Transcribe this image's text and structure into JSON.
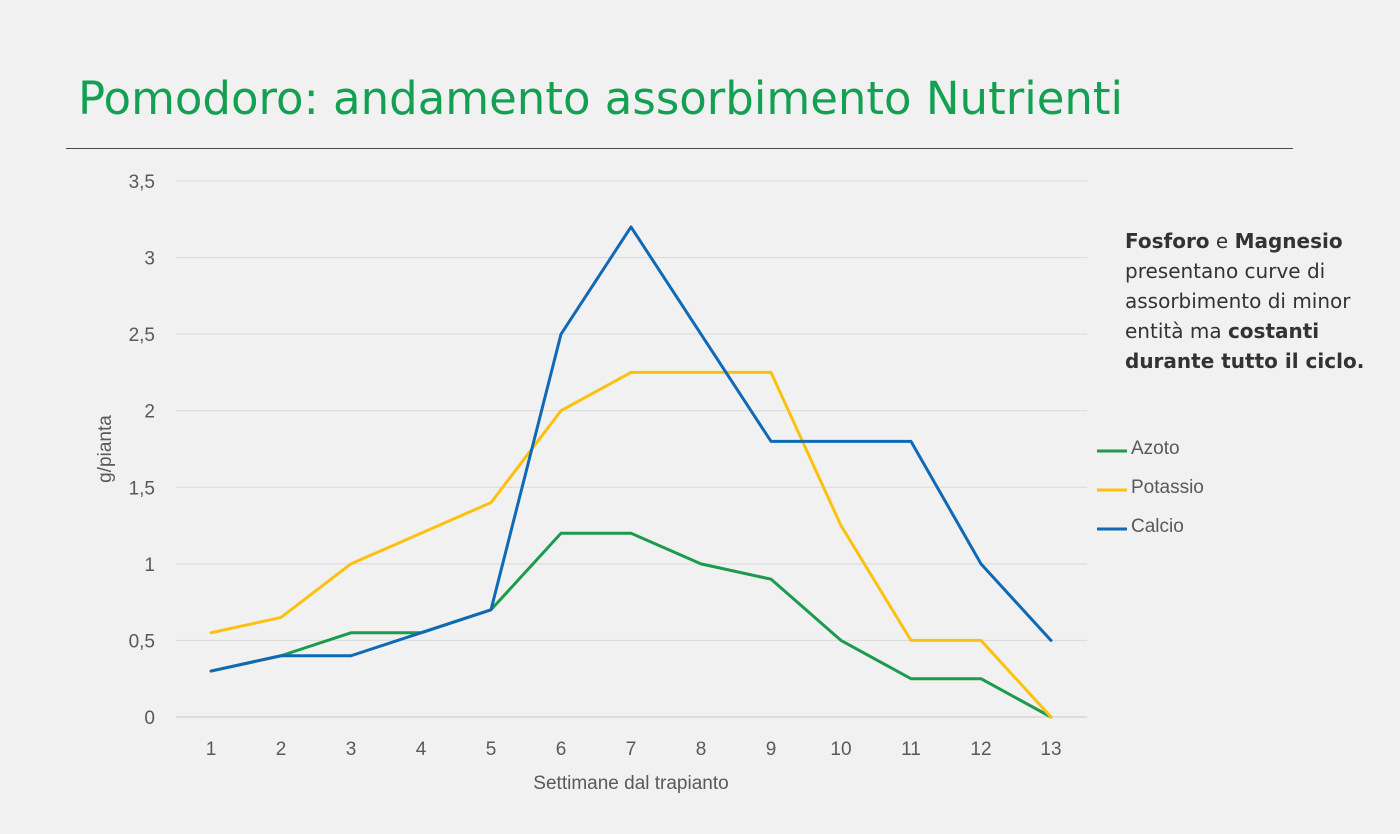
{
  "page": {
    "title": "Pomodoro: andamento assorbimento Nutrienti"
  },
  "note": {
    "part1_bold": "Fosforo",
    "part2": " e ",
    "part3_bold": "Magnesio",
    "part4": " presentano curve di assorbimento di minor entità ma ",
    "part5_bold": "costanti durante tutto il ciclo."
  },
  "colors": {
    "title": "#14a052",
    "azoto": "#1c9a4e",
    "potassio": "#fcc110",
    "calcio": "#0f69b4",
    "grid": "#d9d9d9",
    "tick_text": "#595959"
  },
  "chart_data": {
    "type": "line",
    "title": "",
    "xlabel": "Settimane dal trapianto",
    "ylabel": "g/pianta",
    "categories": [
      "1",
      "2",
      "3",
      "4",
      "5",
      "6",
      "7",
      "8",
      "9",
      "10",
      "11",
      "12",
      "13"
    ],
    "ylim": [
      0,
      3.5
    ],
    "yticks": [
      {
        "value": 0,
        "label": "0"
      },
      {
        "value": 0.5,
        "label": "0,5"
      },
      {
        "value": 1,
        "label": "1"
      },
      {
        "value": 1.5,
        "label": "1,5"
      },
      {
        "value": 2,
        "label": "2"
      },
      {
        "value": 2.5,
        "label": "2,5"
      },
      {
        "value": 3,
        "label": "3"
      },
      {
        "value": 3.5,
        "label": "3,5"
      }
    ],
    "grid": true,
    "legend": "right",
    "series": [
      {
        "name": "Azoto",
        "color": "#1c9a4e",
        "values": [
          0.3,
          0.4,
          0.55,
          0.55,
          0.7,
          1.2,
          1.2,
          1.0,
          0.9,
          0.5,
          0.25,
          0.25,
          0.0
        ]
      },
      {
        "name": "Potassio",
        "color": "#fcc110",
        "values": [
          0.55,
          0.65,
          1.0,
          1.2,
          1.4,
          2.0,
          2.25,
          2.25,
          2.25,
          1.25,
          0.5,
          0.5,
          0.0
        ]
      },
      {
        "name": "Calcio",
        "color": "#0f69b4",
        "values": [
          0.3,
          0.4,
          0.4,
          0.55,
          0.7,
          2.5,
          3.2,
          2.5,
          1.8,
          1.8,
          1.8,
          1.0,
          0.5
        ]
      }
    ]
  }
}
